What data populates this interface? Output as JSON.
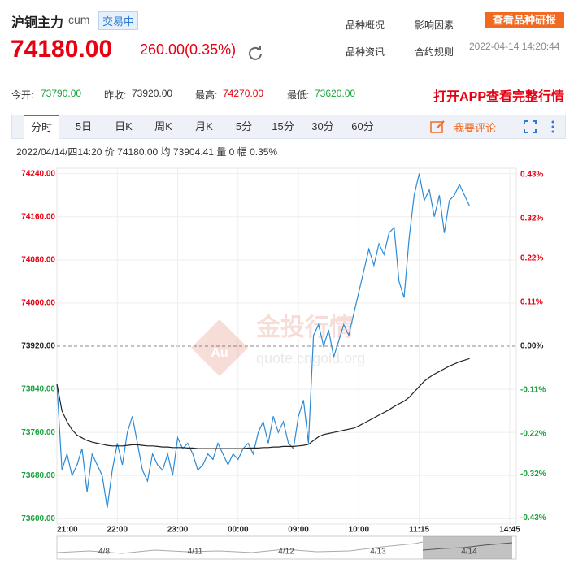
{
  "header": {
    "title": "沪铜主力",
    "code": "cum",
    "status": "交易中",
    "price": "74180.00",
    "change": "260.00(0.35%)",
    "links": [
      "品种概况",
      "影响因素",
      "品种资讯",
      "合约规则"
    ],
    "report_button": "查看品种研报",
    "datetime": "2022-04-14 14:20:44"
  },
  "stats": {
    "items": [
      {
        "label": "今开:",
        "value": "73790.00"
      },
      {
        "label": "昨收:",
        "value": "73920.00"
      },
      {
        "label": "最高:",
        "value": "74270.00"
      },
      {
        "label": "最低:",
        "value": "73620.00"
      }
    ],
    "app_link": "打开APP查看完整行情"
  },
  "tabs": {
    "items": [
      "分时",
      "5日",
      "日K",
      "周K",
      "月K",
      "5分",
      "15分",
      "30分",
      "60分"
    ],
    "comment": "我要评论"
  },
  "info": {
    "date": "2022/04/14/四14:20",
    "price": "74180.00",
    "avg": "73904.41",
    "volume_label": "量",
    "volume": "0",
    "amp_label": "幅",
    "amp": "0.35%"
  },
  "watermark": {
    "logo": "Au",
    "brand": "金投行情",
    "url": "quote.cngold.org"
  },
  "chart_data": {
    "type": "line",
    "x": [
      0,
      5,
      10,
      15,
      20,
      25,
      30,
      35,
      40,
      45,
      50,
      55,
      60,
      65,
      70,
      75,
      80,
      85,
      90,
      95,
      100,
      105,
      110,
      115,
      120,
      125,
      130,
      135,
      140,
      145,
      150,
      155,
      160,
      165,
      170,
      175,
      180,
      185,
      190,
      195,
      200,
      205,
      210,
      215,
      220,
      225,
      230,
      235,
      240,
      245,
      250,
      255,
      260,
      265,
      270,
      275,
      280,
      285,
      290,
      295,
      300,
      305,
      310,
      315,
      320,
      325,
      330,
      335,
      340,
      345,
      350,
      355,
      360,
      365,
      370,
      375,
      380,
      385,
      390,
      395,
      400,
      405,
      410
    ],
    "xlim": [
      0,
      450
    ],
    "xticks": [
      {
        "value": 0,
        "label": "21:00"
      },
      {
        "value": 60,
        "label": "22:00"
      },
      {
        "value": 120,
        "label": "23:00"
      },
      {
        "value": 180,
        "label": "00:00"
      },
      {
        "value": 240,
        "label": "09:00"
      },
      {
        "value": 300,
        "label": "10:00"
      },
      {
        "value": 360,
        "label": "11:15"
      },
      {
        "value": 450,
        "label": "14:45"
      }
    ],
    "ylim": [
      73590,
      74250
    ],
    "yticks": [
      {
        "value": 74240,
        "label": "74240.00"
      },
      {
        "value": 74160,
        "label": "74160.00"
      },
      {
        "value": 74080,
        "label": "74080.00"
      },
      {
        "value": 74000,
        "label": "74000.00"
      },
      {
        "value": 73920,
        "label": "73920.00"
      },
      {
        "value": 73840,
        "label": "73840.00"
      },
      {
        "value": 73760,
        "label": "73760.00"
      },
      {
        "value": 73680,
        "label": "73680.00"
      },
      {
        "value": 73600,
        "label": "73600.00"
      }
    ],
    "y2lim": [
      -0.446,
      0.446
    ],
    "y2ticks": [
      {
        "value": 0.43,
        "label": "0.43%"
      },
      {
        "value": 0.32,
        "label": "0.32%"
      },
      {
        "value": 0.22,
        "label": "0.22%"
      },
      {
        "value": 0.11,
        "label": "0.11%"
      },
      {
        "value": 0,
        "label": "0.00%"
      },
      {
        "value": -0.11,
        "label": "-0.11%"
      },
      {
        "value": -0.22,
        "label": "-0.22%"
      },
      {
        "value": -0.32,
        "label": "-0.32%"
      },
      {
        "value": -0.43,
        "label": "-0.43%"
      }
    ],
    "reference_line": 73920,
    "grid": true,
    "series": [
      {
        "name": "价",
        "color": "#2b8ad6",
        "values": [
          73850,
          73690,
          73720,
          73680,
          73700,
          73730,
          73650,
          73720,
          73700,
          73680,
          73620,
          73690,
          73740,
          73700,
          73760,
          73790,
          73740,
          73690,
          73670,
          73720,
          73700,
          73690,
          73720,
          73680,
          73750,
          73730,
          73740,
          73720,
          73690,
          73700,
          73720,
          73710,
          73740,
          73720,
          73700,
          73720,
          73710,
          73730,
          73740,
          73720,
          73760,
          73780,
          73740,
          73790,
          73760,
          73780,
          73740,
          73730,
          73790,
          73820,
          73740,
          73940,
          73960,
          73920,
          73950,
          73900,
          73930,
          73960,
          73940,
          73980,
          74020,
          74060,
          74100,
          74070,
          74110,
          74090,
          74130,
          74140,
          74040,
          74010,
          74120,
          74200,
          74240,
          74190,
          74210,
          74160,
          74200,
          74130,
          74190,
          74200,
          74220,
          74200,
          74180
        ]
      },
      {
        "name": "均",
        "color": "#222222",
        "values": [
          73850,
          73800,
          73780,
          73765,
          73755,
          73750,
          73745,
          73742,
          73740,
          73738,
          73736,
          73735,
          73735,
          73735,
          73736,
          73737,
          73737,
          73736,
          73735,
          73735,
          73734,
          73733,
          73733,
          73732,
          73732,
          73732,
          73731,
          73731,
          73730,
          73730,
          73730,
          73730,
          73730,
          73730,
          73730,
          73730,
          73730,
          73730,
          73731,
          73731,
          73731,
          73732,
          73732,
          73733,
          73733,
          73734,
          73734,
          73734,
          73735,
          73736,
          73738,
          73745,
          73752,
          73756,
          73758,
          73760,
          73762,
          73764,
          73766,
          73768,
          73772,
          73777,
          73782,
          73787,
          73792,
          73797,
          73802,
          73808,
          73813,
          73818,
          73825,
          73835,
          73845,
          73855,
          73862,
          73868,
          73873,
          73878,
          73883,
          73887,
          73891,
          73894,
          73897
        ]
      }
    ]
  },
  "navigator": {
    "labels": [
      "4/8",
      "4/11",
      "4/12",
      "4/13",
      "4/14"
    ]
  }
}
